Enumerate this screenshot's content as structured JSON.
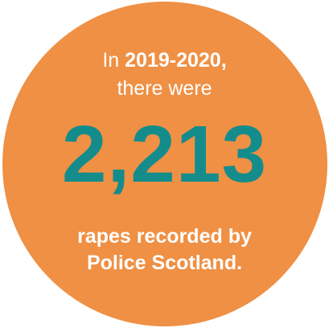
{
  "colors": {
    "circle": "#ef9044",
    "figure": "#148c8c",
    "text": "#ffffff"
  },
  "intro": {
    "prefix": "In ",
    "years": "2019-2020,",
    "line2": "there were"
  },
  "figure": "2,213",
  "caption": {
    "line1": "rapes recorded by",
    "line2": "Police Scotland."
  }
}
